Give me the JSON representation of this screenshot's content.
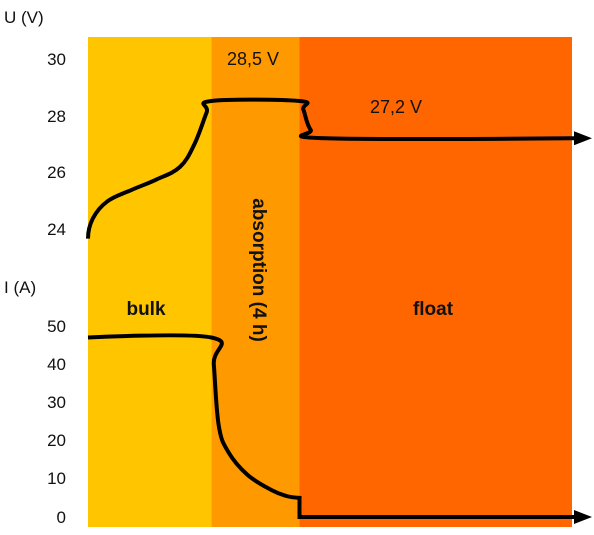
{
  "chart_data": {
    "type": "line",
    "colors": {
      "bulk": "#FFC600",
      "absorption": "#FF9900",
      "float": "#FF6600",
      "line": "#000000",
      "text": "#111111"
    },
    "phases": [
      {
        "name": "bulk",
        "label": "bulk",
        "start_fraction": 0.0,
        "end_fraction": 0.255
      },
      {
        "name": "absorption",
        "label": "absorption (4 h)",
        "start_fraction": 0.255,
        "end_fraction": 0.437
      },
      {
        "name": "float",
        "label": "float",
        "start_fraction": 0.437,
        "end_fraction": 1.0
      }
    ],
    "voltage": {
      "axis_title": "U (V)",
      "ylim": [
        24,
        30
      ],
      "ticks": [
        "30",
        "28",
        "26",
        "24"
      ],
      "tick_values": [
        30,
        28,
        26,
        24
      ],
      "annotations": [
        {
          "text": "28,5 V",
          "value": 28.5
        },
        {
          "text": "27,2 V",
          "value": 27.2
        }
      ],
      "points": [
        [
          0.0,
          23.7
        ],
        [
          0.01,
          24.4
        ],
        [
          0.04,
          25.0
        ],
        [
          0.09,
          25.4
        ],
        [
          0.14,
          25.75
        ],
        [
          0.19,
          26.2
        ],
        [
          0.22,
          27.0
        ],
        [
          0.245,
          28.1
        ],
        [
          0.255,
          28.5
        ],
        [
          0.437,
          28.5
        ],
        [
          0.445,
          28.2
        ],
        [
          0.46,
          27.5
        ],
        [
          0.49,
          27.2
        ],
        [
          1.0,
          27.2
        ]
      ]
    },
    "current": {
      "axis_title": "I (A)",
      "ylim": [
        0,
        50
      ],
      "ticks": [
        "50",
        "40",
        "30",
        "20",
        "10",
        "0"
      ],
      "tick_values": [
        50,
        40,
        30,
        20,
        10,
        0
      ],
      "points": [
        [
          0.0,
          47
        ],
        [
          0.255,
          47
        ],
        [
          0.26,
          40
        ],
        [
          0.27,
          24
        ],
        [
          0.29,
          17
        ],
        [
          0.33,
          11
        ],
        [
          0.38,
          7
        ],
        [
          0.41,
          5.5
        ],
        [
          0.437,
          5
        ],
        [
          0.437,
          0
        ],
        [
          1.0,
          0
        ]
      ]
    }
  }
}
